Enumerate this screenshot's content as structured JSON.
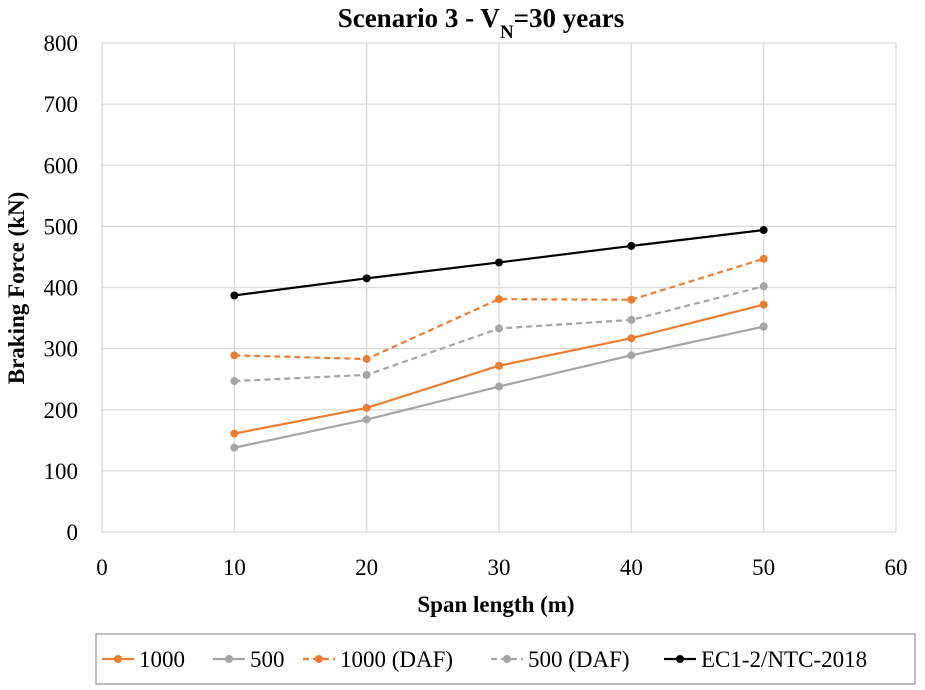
{
  "chart_data": {
    "type": "line",
    "title": {
      "main": "Scenario 3 - V",
      "subscript": "N",
      "suffix": "=30 years"
    },
    "xlabel": "Span length (m)",
    "ylabel": "Braking Force (kN)",
    "xlim": [
      0,
      60
    ],
    "ylim": [
      0,
      800
    ],
    "xticks": [
      0,
      10,
      20,
      30,
      40,
      50,
      60
    ],
    "yticks": [
      0,
      100,
      200,
      300,
      400,
      500,
      600,
      700,
      800
    ],
    "grid": "vertical and horizontal major gridlines",
    "legend_position": "bottom",
    "x": [
      10,
      20,
      30,
      40,
      50
    ],
    "series": [
      {
        "name": "1000",
        "values": [
          161,
          203,
          272,
          317,
          372
        ],
        "color": "#ed7d31",
        "dash": "solid"
      },
      {
        "name": "500",
        "values": [
          138,
          184,
          238,
          289,
          336
        ],
        "color": "#a5a5a5",
        "dash": "solid"
      },
      {
        "name": "1000 (DAF)",
        "values": [
          289,
          283,
          381,
          380,
          447
        ],
        "color": "#ed7d31",
        "dash": "dashed"
      },
      {
        "name": "500 (DAF)",
        "values": [
          247,
          257,
          333,
          347,
          402
        ],
        "color": "#a5a5a5",
        "dash": "dashed"
      },
      {
        "name": "EC1-2/NTC-2018",
        "values": [
          387,
          415,
          441,
          468,
          494
        ],
        "color": "#000000",
        "dash": "solid"
      }
    ]
  }
}
